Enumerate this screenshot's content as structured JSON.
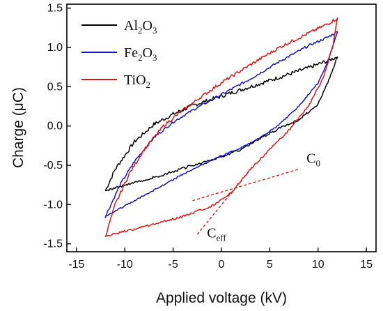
{
  "chart_data": {
    "type": "line",
    "xlabel": "Applied voltage (kV)",
    "ylabel": "Charge (μC)",
    "xlim": [
      -16,
      16
    ],
    "ylim": [
      -1.6,
      1.55
    ],
    "xticks": [
      -15,
      -10,
      -5,
      0,
      5,
      10,
      15
    ],
    "yticks": [
      -1.5,
      -1.0,
      -0.5,
      0.0,
      0.5,
      1.0,
      1.5
    ],
    "ytick_labels": [
      "-1.5",
      "-1.0",
      "-0.5",
      "0.0",
      "0.5",
      "1.0",
      "1.5"
    ],
    "xtick_labels": [
      "-15",
      "-10",
      "-5",
      "0",
      "5",
      "10",
      "15"
    ],
    "legend_position": "top-left",
    "series": [
      {
        "name": "Al2O3",
        "label_base": "Al",
        "label_sub1": "2",
        "label_mid": "O",
        "label_sub2": "3",
        "color": "#000000",
        "upper": [
          [
            -12,
            -0.82
          ],
          [
            -11,
            -0.55
          ],
          [
            -9,
            -0.2
          ],
          [
            -7,
            0.02
          ],
          [
            -5,
            0.15
          ],
          [
            -3,
            0.26
          ],
          [
            0,
            0.38
          ],
          [
            3,
            0.5
          ],
          [
            6,
            0.62
          ],
          [
            9,
            0.74
          ],
          [
            11,
            0.83
          ],
          [
            12,
            0.88
          ]
        ],
        "lower": [
          [
            12,
            0.88
          ],
          [
            11,
            0.55
          ],
          [
            10,
            0.28
          ],
          [
            8,
            0.08
          ],
          [
            6,
            -0.03
          ],
          [
            4,
            -0.16
          ],
          [
            2,
            -0.3
          ],
          [
            0,
            -0.39
          ],
          [
            -3,
            -0.5
          ],
          [
            -6,
            -0.62
          ],
          [
            -9,
            -0.72
          ],
          [
            -12,
            -0.82
          ]
        ]
      },
      {
        "name": "Fe2O3",
        "label_base": "Fe",
        "label_sub1": "2",
        "label_mid": "O",
        "label_sub2": "3",
        "color": "#1414c8",
        "upper": [
          [
            -12,
            -1.15
          ],
          [
            -10.5,
            -0.75
          ],
          [
            -9,
            -0.45
          ],
          [
            -7,
            -0.15
          ],
          [
            -5,
            0.05
          ],
          [
            -3,
            0.2
          ],
          [
            0,
            0.4
          ],
          [
            3,
            0.6
          ],
          [
            6,
            0.82
          ],
          [
            9,
            1.02
          ],
          [
            11,
            1.13
          ],
          [
            12,
            1.2
          ]
        ],
        "lower": [
          [
            12,
            1.2
          ],
          [
            11,
            0.82
          ],
          [
            10,
            0.55
          ],
          [
            8,
            0.25
          ],
          [
            6,
            0.02
          ],
          [
            4,
            -0.15
          ],
          [
            2,
            -0.28
          ],
          [
            0,
            -0.38
          ],
          [
            -3,
            -0.55
          ],
          [
            -6,
            -0.75
          ],
          [
            -9,
            -0.95
          ],
          [
            -12,
            -1.15
          ]
        ]
      },
      {
        "name": "TiO2",
        "label_base": "Ti",
        "label_sub1": "",
        "label_mid": "O",
        "label_sub2": "2",
        "color": "#e01414",
        "upper": [
          [
            -12,
            -1.4
          ],
          [
            -11,
            -1.0
          ],
          [
            -9.5,
            -0.6
          ],
          [
            -8,
            -0.3
          ],
          [
            -6,
            0.0
          ],
          [
            -4,
            0.2
          ],
          [
            -2,
            0.38
          ],
          [
            0,
            0.55
          ],
          [
            3,
            0.78
          ],
          [
            6,
            1.0
          ],
          [
            9,
            1.18
          ],
          [
            11,
            1.3
          ],
          [
            12,
            1.37
          ]
        ],
        "lower": [
          [
            12,
            1.37
          ],
          [
            11.5,
            1.0
          ],
          [
            10.5,
            0.6
          ],
          [
            9,
            0.25
          ],
          [
            7,
            -0.05
          ],
          [
            5,
            -0.3
          ],
          [
            3,
            -0.55
          ],
          [
            1,
            -0.85
          ],
          [
            -1,
            -1.02
          ],
          [
            -4,
            -1.15
          ],
          [
            -8,
            -1.28
          ],
          [
            -11,
            -1.37
          ],
          [
            -12,
            -1.4
          ]
        ]
      }
    ],
    "annotations": [
      {
        "name": "C0",
        "label_base": "C",
        "label_sub": "0",
        "color": "#e01414",
        "line": [
          [
            -3,
            -0.95
          ],
          [
            8,
            -0.55
          ]
        ],
        "label_at": [
          8.8,
          -0.47
        ]
      },
      {
        "name": "Ceff",
        "label_base": "C",
        "label_sub": "eff",
        "color": "#e01414",
        "line": [
          [
            -2.5,
            -1.38
          ],
          [
            3.2,
            -0.52
          ]
        ],
        "label_at": [
          -1.5,
          -1.42
        ]
      }
    ]
  }
}
